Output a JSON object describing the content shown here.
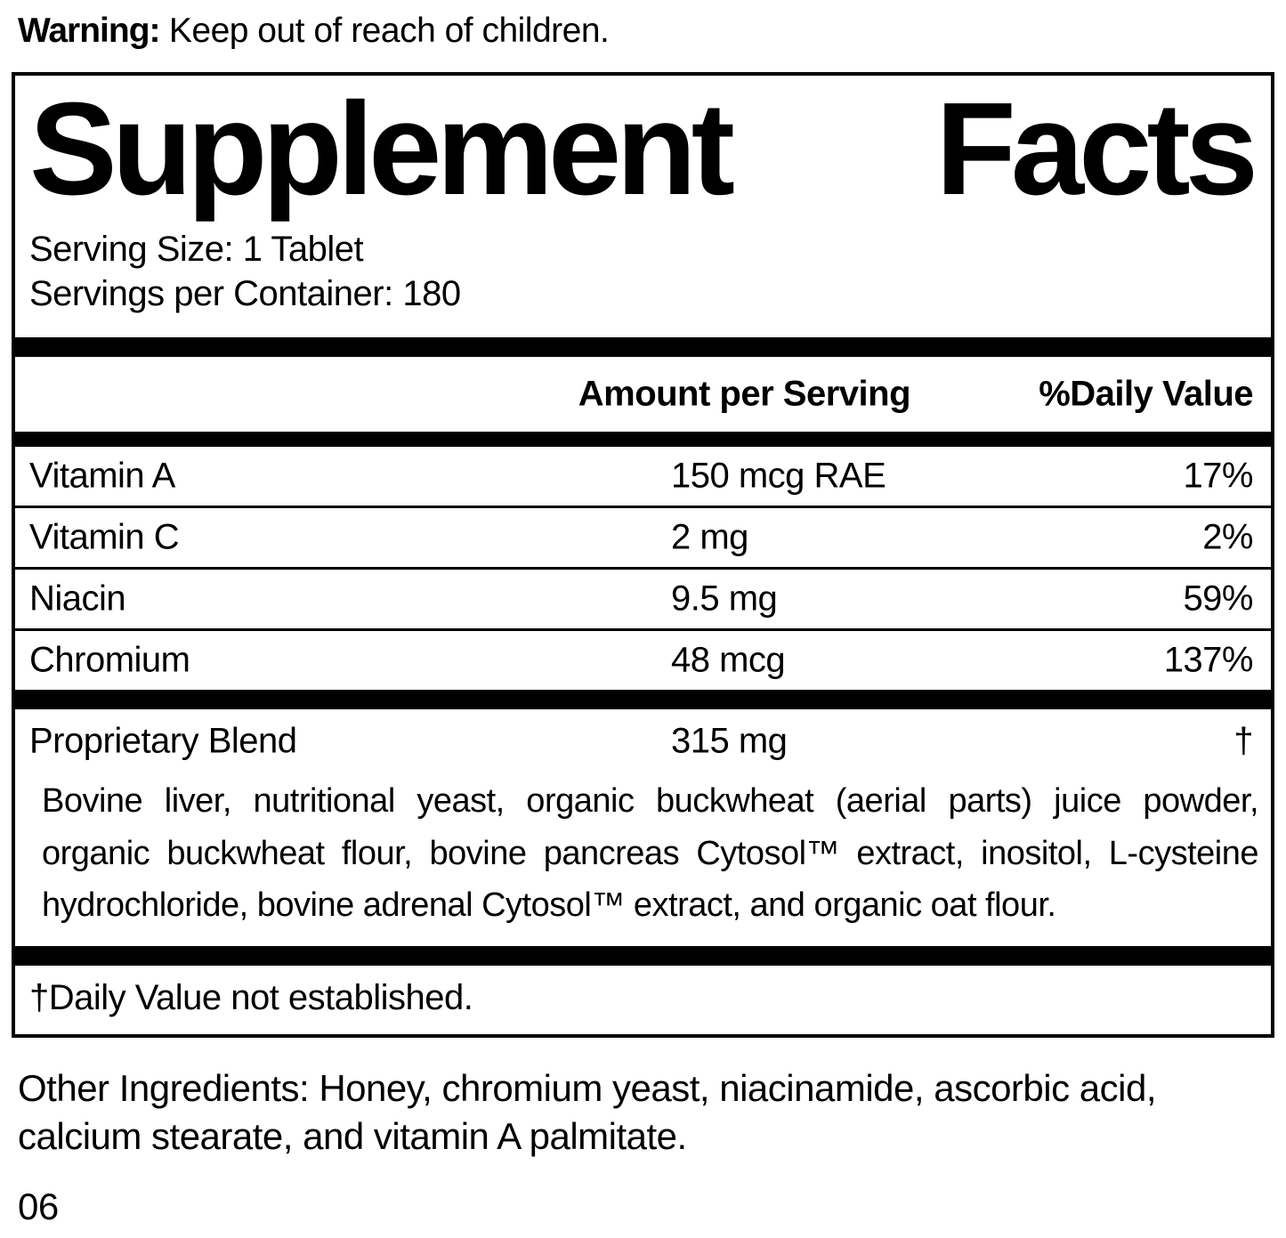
{
  "warning": {
    "label": "Warning:",
    "text": " Keep out of reach of children."
  },
  "supplement_facts": {
    "title_word_1": "Supplement",
    "title_word_2": "Facts",
    "serving_size": "Serving Size: 1 Tablet",
    "servings_per_container": "Servings per Container: 180",
    "columns": {
      "amount": "Amount per Serving",
      "daily_value": "%Daily Value"
    },
    "nutrients": [
      {
        "name": "Vitamin A",
        "amount": "150 mcg RAE",
        "daily_value": "17%"
      },
      {
        "name": "Vitamin C",
        "amount": "2 mg",
        "daily_value": "2%"
      },
      {
        "name": "Niacin",
        "amount": "9.5 mg",
        "daily_value": "59%"
      },
      {
        "name": "Chromium",
        "amount": "48 mcg",
        "daily_value": "137%"
      }
    ],
    "proprietary_blend": {
      "name": "Proprietary Blend",
      "amount": "315 mg",
      "daily_value": "†",
      "ingredients": "Bovine liver, nutritional yeast, organic buckwheat (aerial parts) juice powder, organic buckwheat flour, bovine pancreas Cytosol™ extract, inositol, L-cysteine hydrochloride, bovine adrenal Cytosol™ extract, and organic oat flour."
    },
    "footnote": "†Daily Value not established."
  },
  "other_ingredients": "Other Ingredients: Honey, chromium yeast, niacinamide, ascorbic acid, calcium stearate, and vitamin A palmitate.",
  "page_code": "06"
}
